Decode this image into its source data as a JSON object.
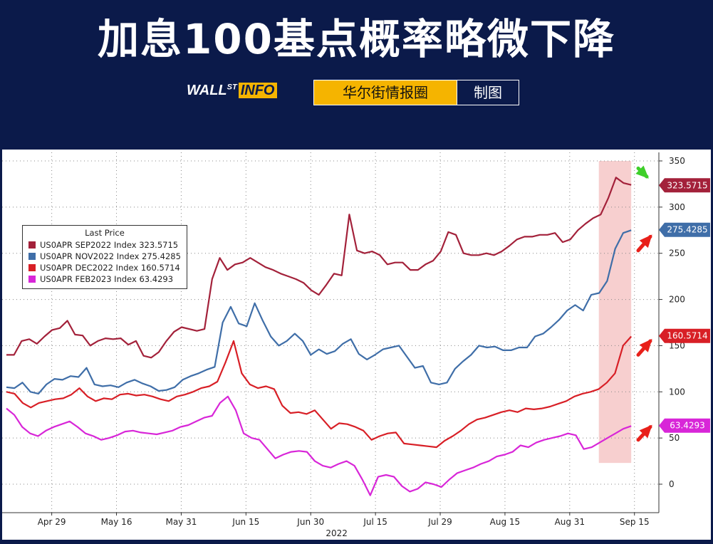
{
  "title": "加息100基点概率略微下降",
  "brand": {
    "logo_main": "WALL",
    "logo_sup": "ST",
    "logo_info": "INFO",
    "source_label": "华尔街情报圈",
    "made_label": "制图"
  },
  "colors": {
    "background": "#0b1a4a",
    "brand_yellow": "#f5b400",
    "highlight": "#f6c7c7",
    "arrow_red": "#e8201a",
    "arrow_green": "#3fcf2a"
  },
  "chart_data": {
    "type": "line",
    "xlabel": "2022",
    "ylabel": "",
    "x_tick_labels": [
      "Apr 29",
      "May 16",
      "May 31",
      "Jun 15",
      "Jun 30",
      "Jul 15",
      "Jul 29",
      "Aug 15",
      "Aug 31",
      "Sep 15"
    ],
    "y_ticks": [
      0,
      50,
      100,
      150,
      200,
      250,
      300,
      350
    ],
    "ylim": [
      -30,
      355
    ],
    "grid": true,
    "legend": {
      "title": "Last Price",
      "placement": "top-left",
      "entries": [
        "US0APR SEP2022 Index  323.5715",
        "US0APR NOV2022 Index  275.4285",
        "US0APR DEC2022 Index  160.5714",
        "US0APR FEB2023 Index  63.4293"
      ]
    },
    "last_value_labels": [
      "323.5715",
      "275.4285",
      "160.5714",
      "63.4293"
    ],
    "highlight_region": {
      "x_start": 91.5,
      "x_end": 96.5,
      "y_start": 23,
      "y_end": 350
    },
    "series": [
      {
        "name": "US0APR SEP2022 Index",
        "color": "#a3213a",
        "last": 323.5715,
        "values": [
          140,
          140,
          155,
          157,
          152,
          160,
          167,
          169,
          177,
          162,
          161,
          150,
          155,
          158,
          157,
          158,
          151,
          155,
          139,
          137,
          143,
          155,
          165,
          170,
          168,
          166,
          168,
          222,
          245,
          232,
          238,
          240,
          245,
          240,
          235,
          232,
          228,
          225,
          222,
          218,
          210,
          205,
          216,
          228,
          226,
          292,
          253,
          250,
          252,
          248,
          238,
          240,
          240,
          232,
          232,
          238,
          242,
          252,
          273,
          270,
          250,
          248,
          248,
          250,
          248,
          252,
          258,
          265,
          268,
          268,
          270,
          270,
          272,
          262,
          265,
          275,
          282,
          288,
          292,
          310,
          332,
          326,
          324
        ]
      },
      {
        "name": "US0APR NOV2022 Index",
        "color": "#3f6ea8",
        "last": 275.4285,
        "values": [
          105,
          104,
          110,
          100,
          98,
          108,
          114,
          113,
          117,
          116,
          126,
          108,
          106,
          107,
          105,
          110,
          113,
          109,
          106,
          101,
          102,
          105,
          113,
          117,
          120,
          124,
          127,
          175,
          192,
          174,
          171,
          196,
          177,
          160,
          150,
          155,
          163,
          155,
          140,
          146,
          141,
          144,
          152,
          157,
          141,
          135,
          140,
          146,
          148,
          150,
          138,
          126,
          128,
          110,
          108,
          110,
          125,
          133,
          140,
          150,
          148,
          149,
          145,
          145,
          148,
          148,
          160,
          163,
          170,
          178,
          188,
          194,
          188,
          205,
          207,
          220,
          255,
          272,
          275
        ]
      },
      {
        "name": "US0APR DEC2022 Index",
        "color": "#d81f26",
        "last": 160.5714,
        "values": [
          100,
          98,
          88,
          83,
          88,
          90,
          92,
          93,
          97,
          104,
          95,
          90,
          93,
          92,
          97,
          98,
          96,
          97,
          95,
          92,
          90,
          95,
          97,
          100,
          104,
          106,
          111,
          132,
          155,
          120,
          108,
          104,
          106,
          103,
          85,
          77,
          78,
          76,
          80,
          70,
          60,
          66,
          65,
          62,
          58,
          48,
          52,
          55,
          56,
          44,
          43,
          42,
          41,
          40,
          47,
          52,
          58,
          65,
          70,
          72,
          75,
          78,
          80,
          78,
          82,
          81,
          82,
          84,
          87,
          90,
          95,
          98,
          100,
          103,
          110,
          120,
          150,
          160
        ]
      },
      {
        "name": "US0APR FEB2023 Index",
        "color": "#d826d8",
        "last": 63.4293,
        "values": [
          82,
          75,
          62,
          55,
          52,
          58,
          62,
          65,
          68,
          62,
          55,
          52,
          48,
          50,
          53,
          57,
          58,
          56,
          55,
          54,
          56,
          58,
          62,
          64,
          68,
          72,
          74,
          88,
          95,
          80,
          55,
          50,
          48,
          38,
          28,
          32,
          35,
          36,
          35,
          25,
          20,
          18,
          22,
          25,
          20,
          5,
          -12,
          8,
          10,
          8,
          -2,
          -8,
          -5,
          2,
          0,
          -3,
          5,
          12,
          15,
          18,
          22,
          25,
          30,
          32,
          35,
          42,
          40,
          45,
          48,
          50,
          52,
          55,
          53,
          38,
          40,
          45,
          50,
          55,
          60,
          63
        ]
      }
    ]
  }
}
